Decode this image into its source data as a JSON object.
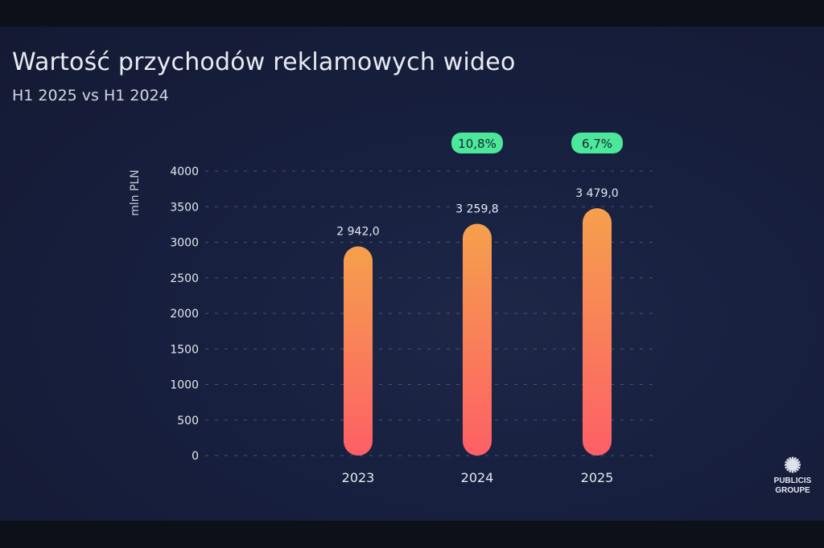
{
  "title": "Wartość przychodów reklamowych wideo",
  "subtitle": "H1 2025 vs H1 2024",
  "logo": {
    "line1": "PUBLICIS",
    "line2": "GROUPE"
  },
  "chart_data": {
    "type": "bar",
    "categories": [
      "2023",
      "2024",
      "2025"
    ],
    "values": [
      2942.0,
      3259.8,
      3479.0
    ],
    "data_labels": [
      "2 942,0",
      "3 259,8",
      "3 479,0"
    ],
    "growth_badges": [
      "",
      "10,8%",
      "6,7%"
    ],
    "ylabel": "mln PLN",
    "xlabel": "",
    "ylim": [
      0,
      4000
    ],
    "yticks": [
      0,
      500,
      1000,
      1500,
      2000,
      2500,
      3000,
      3500,
      4000
    ],
    "grid": true,
    "colors": {
      "bar_top": "#f5a04c",
      "bar_bottom": "#fd5f66",
      "badge": "#4be79a",
      "text": "#e6e8ef",
      "grid": "#4a5270"
    }
  }
}
